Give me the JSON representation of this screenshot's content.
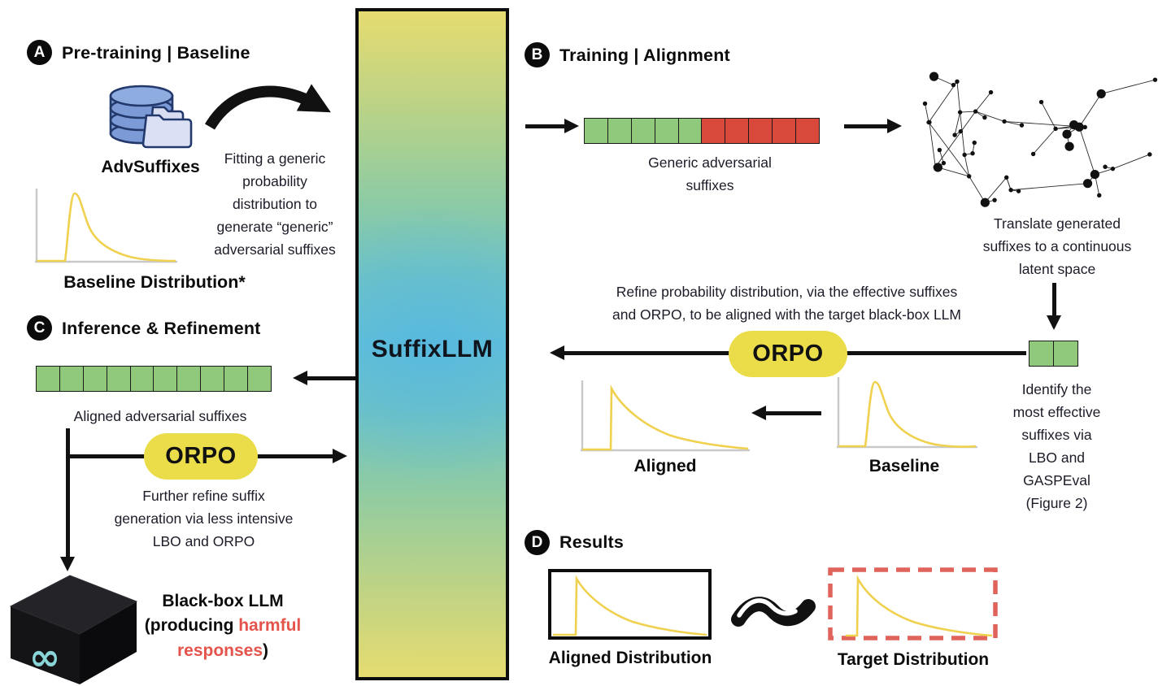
{
  "center": {
    "label": "SuffixLLM"
  },
  "colors": {
    "suffix_green": "#90C97C",
    "suffix_red": "#D8493C",
    "orpo_yellow": "#EBDD49",
    "curve_yellow": "#EFD14F",
    "axis_gray": "#C9C9C9",
    "target_dash_red": "#E0635C",
    "meta_logo_cyan": "#8AD5D8",
    "column_gradient_top": "#E6DB70",
    "column_gradient_middle": "#62C0D6"
  },
  "section_a": {
    "badge": "A",
    "title": "Pre-training | Baseline",
    "dataset_label": "AdvSuffixes",
    "fit_text": [
      "Fitting a generic",
      "probability",
      "distribution to",
      "generate “generic”",
      "adversarial suffixes"
    ],
    "chart_label": "Baseline Distribution*"
  },
  "section_b": {
    "badge": "B",
    "title": "Training | Alignment",
    "suffix_row": {
      "green": 5,
      "red": 5
    },
    "suffix_row_label": [
      "Generic adversarial",
      "suffixes"
    ],
    "latent_text": [
      "Translate generated",
      "suffixes to a continuous",
      "latent space"
    ],
    "refine_text": [
      "Refine probability distribution, via the effective suffixes",
      "and ORPO, to be aligned with the target black-box LLM"
    ],
    "orpo_label": "ORPO",
    "effective_tokens": {
      "green": 2,
      "red": 0
    },
    "identify_text": [
      "Identify the",
      "most effective",
      "suffixes via",
      "LBO and",
      "GASPEval",
      "(Figure 2)"
    ],
    "aligned_chart_label": "Aligned",
    "baseline_chart_label": "Baseline"
  },
  "section_c": {
    "badge": "C",
    "title": "Inference & Refinement",
    "suffix_row": {
      "green": 10,
      "red": 0
    },
    "suffix_row_label": "Aligned adversarial suffixes",
    "orpo_label": "ORPO",
    "refine_text": [
      "Further refine suffix",
      "generation via less intensive",
      "LBO and ORPO"
    ],
    "blackbox": {
      "line1": "Black-box LLM",
      "line2_prefix": "(producing ",
      "line2_red": "harmful",
      "line3_red": "responses",
      "line3_suffix": ")"
    }
  },
  "section_d": {
    "badge": "D",
    "title": "Results",
    "aligned_label": "Aligned Distribution",
    "target_label": "Target Distribution"
  }
}
